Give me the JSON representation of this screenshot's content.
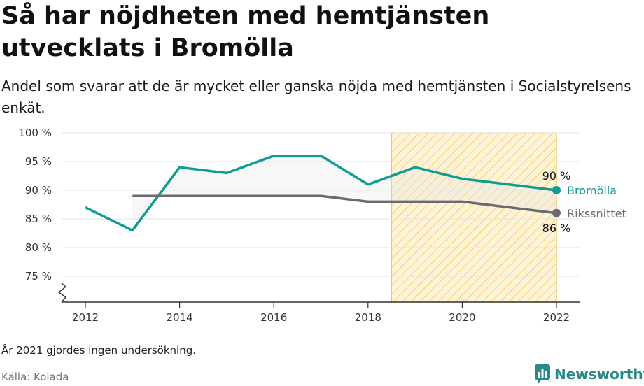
{
  "header": {
    "title": "Så har nöjdheten med hemtjänsten utvecklats i Bromölla",
    "subtitle": "Andel som svarar att de är mycket eller ganska nöjda med hemtjänsten i Socialstyrelsens enkät."
  },
  "footer": {
    "note": "År 2021 gjordes ingen undersökning.",
    "source": "Källa: Kolada",
    "brand": "Newsworthy"
  },
  "colors": {
    "bromolla": "#119c91",
    "riksnittet": "#6b6a70",
    "highlight": "#f5c24a",
    "axis": "#333333",
    "grid": "#e6e6e6"
  },
  "chart_data": {
    "type": "line",
    "title": "Så har nöjdheten med hemtjänsten utvecklats i Bromölla",
    "xlim": [
      2012,
      2022
    ],
    "ylim": [
      75,
      100
    ],
    "x_ticks": [
      2012,
      2014,
      2016,
      2018,
      2020,
      2022
    ],
    "x_tick_labels": [
      "2012",
      "2014",
      "2016",
      "2018",
      "2020",
      "2022"
    ],
    "y_ticks": [
      75,
      80,
      85,
      90,
      95,
      100
    ],
    "y_tick_labels": [
      "75 %",
      "80 %",
      "85 %",
      "90 %",
      "95 %",
      "100 %"
    ],
    "grid": true,
    "axis_break": true,
    "highlight_range": [
      2018.5,
      2022
    ],
    "series": [
      {
        "name": "Bromölla",
        "x": [
          2012,
          2013,
          2014,
          2015,
          2016,
          2017,
          2018,
          2019,
          2020,
          2022
        ],
        "values": [
          87,
          83,
          94,
          93,
          96,
          96,
          91,
          94,
          92,
          90
        ],
        "end_label": "90 %"
      },
      {
        "name": "Rikssnittet",
        "x": [
          2013,
          2014,
          2015,
          2016,
          2017,
          2018,
          2019,
          2020,
          2022
        ],
        "values": [
          89,
          89,
          89,
          89,
          89,
          88,
          88,
          88,
          86
        ],
        "end_label": "86 %"
      }
    ]
  }
}
